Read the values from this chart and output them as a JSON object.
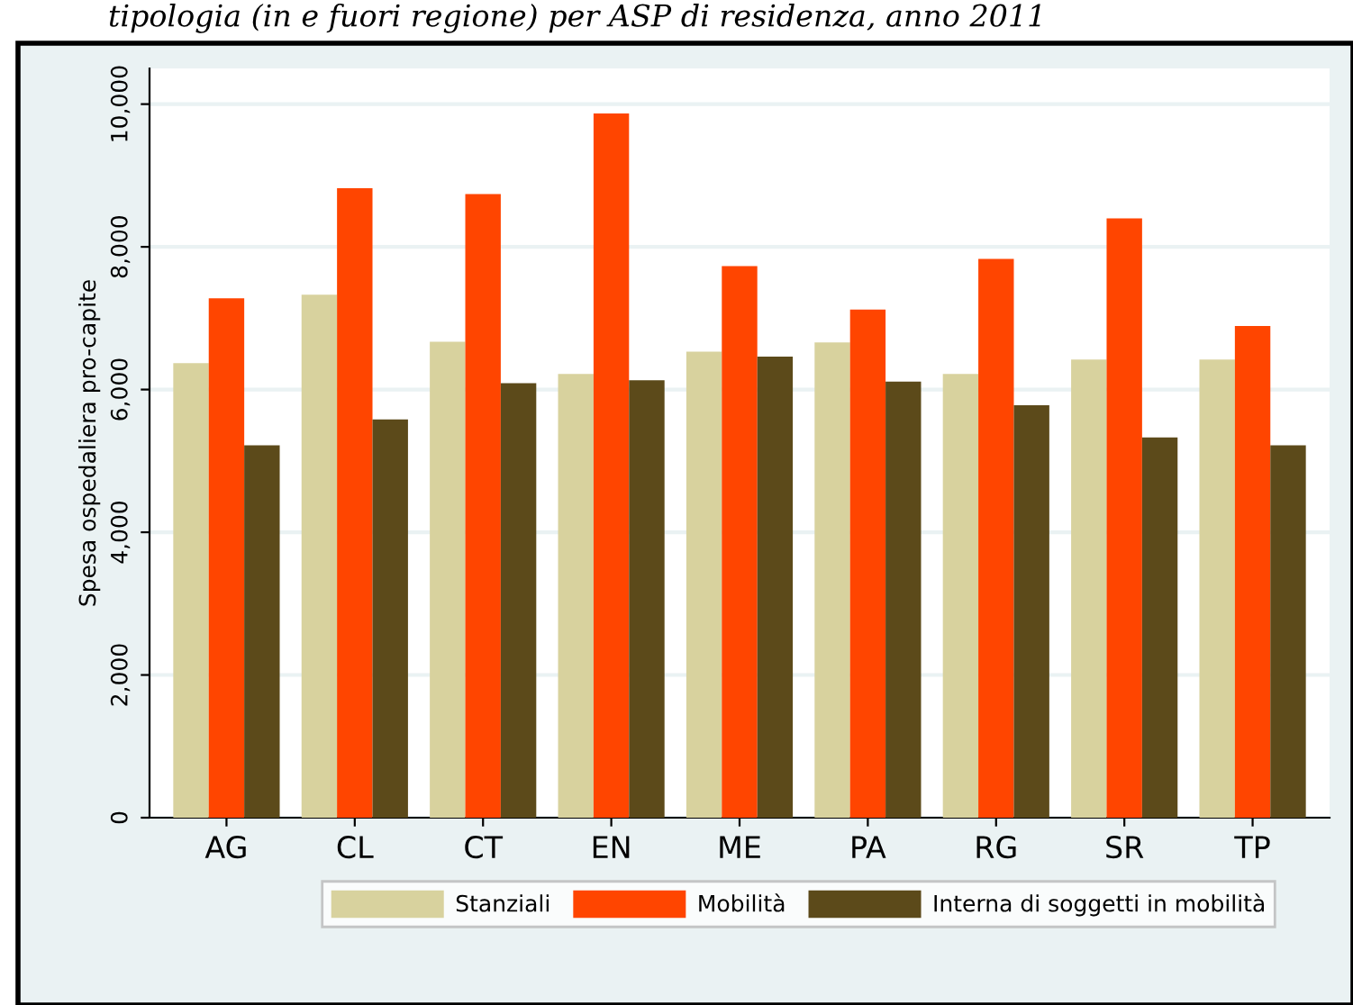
{
  "chart_data": {
    "type": "bar",
    "title": "tipologia (in e fuori regione) per ASP di residenza, anno 2011",
    "ylabel": "Spesa ospedaliera pro-capite",
    "categories": [
      "AG",
      "CL",
      "CT",
      "EN",
      "ME",
      "PA",
      "RG",
      "SR",
      "TP"
    ],
    "series": [
      {
        "name": "Stanziali",
        "color": "#d8d29e",
        "values": [
          6370,
          7330,
          6670,
          6220,
          6530,
          6660,
          6220,
          6420,
          6420
        ]
      },
      {
        "name": "Mobilità",
        "color": "#ff4500",
        "values": [
          7280,
          8820,
          8740,
          9870,
          7730,
          7120,
          7830,
          8400,
          6890
        ]
      },
      {
        "name": "Interna di soggetti in mobilità",
        "color": "#5c4a1a",
        "values": [
          5220,
          5580,
          6090,
          6130,
          6460,
          6110,
          5780,
          5330,
          5220
        ]
      }
    ],
    "ylim": [
      0,
      10500
    ],
    "yticks": [
      {
        "value": 0,
        "label": "0"
      },
      {
        "value": 2000,
        "label": "2,000"
      },
      {
        "value": 4000,
        "label": "4,000"
      },
      {
        "value": 6000,
        "label": "6,000"
      },
      {
        "value": 8000,
        "label": "8,000"
      },
      {
        "value": 10000,
        "label": "10,000"
      }
    ],
    "grid": "y",
    "legend": "bottom"
  }
}
